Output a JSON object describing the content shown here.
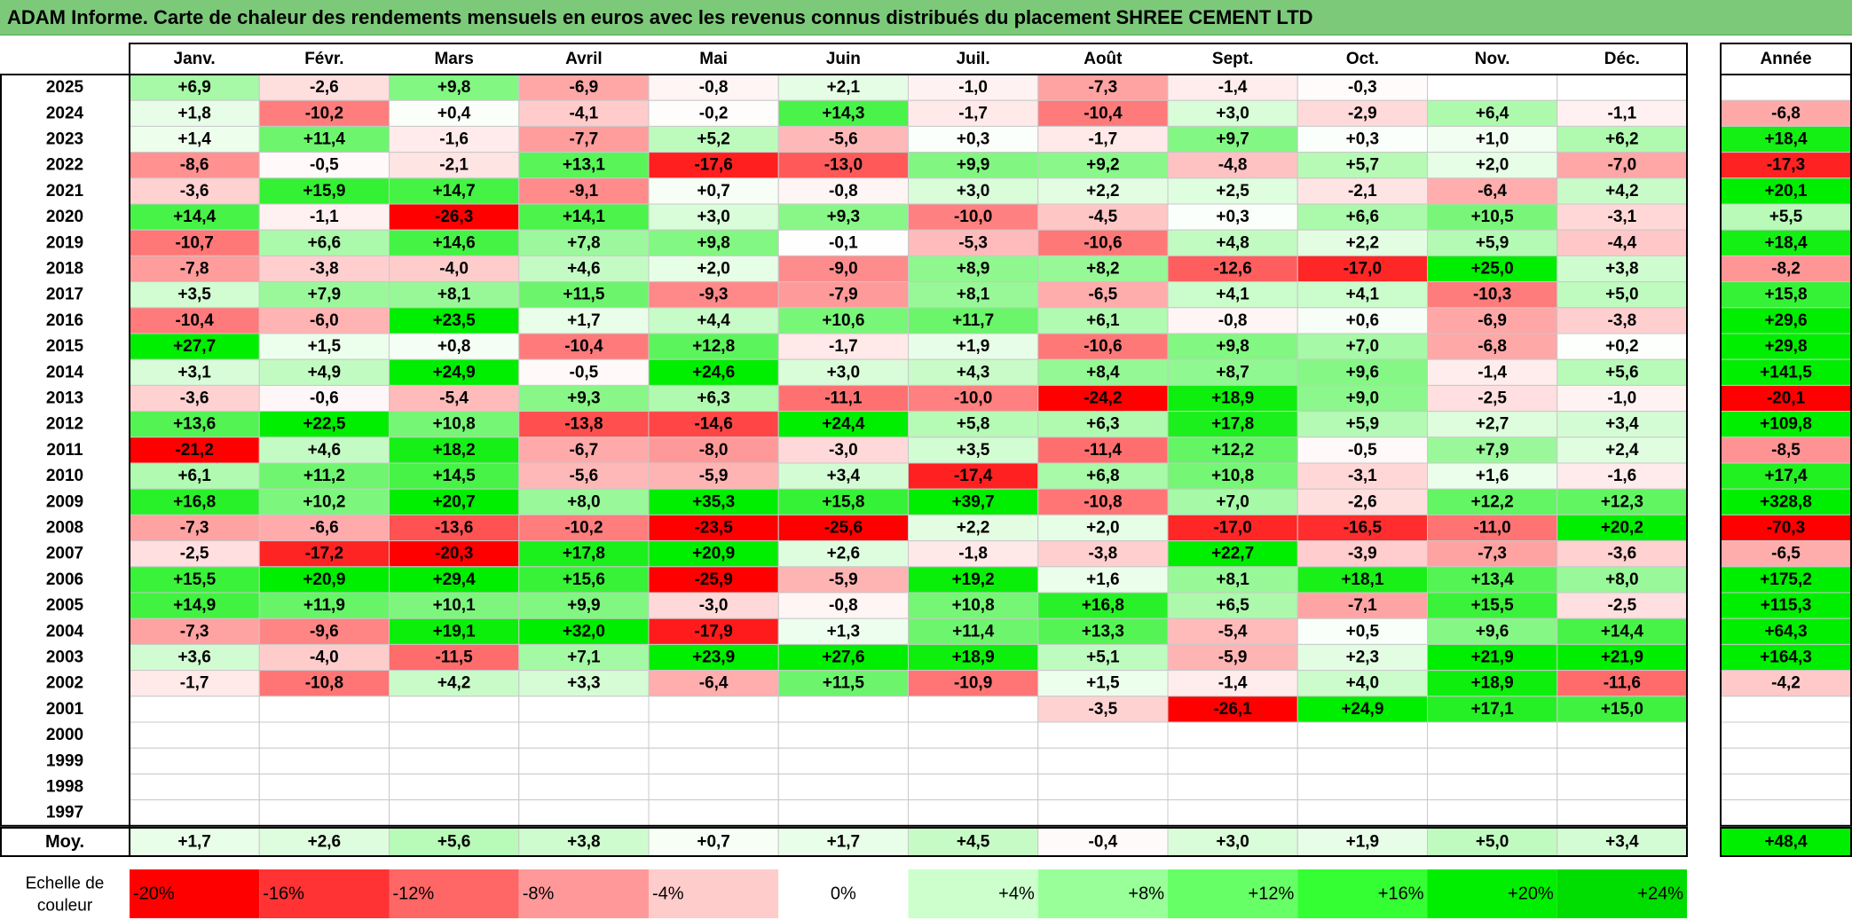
{
  "title": "ADAM Informe. Carte de chaleur des rendements mensuels en euros avec les revenus connus distribués du placement SHREE CEMENT LTD",
  "chart_data": {
    "type": "heatmap",
    "months": [
      "Janv.",
      "Févr.",
      "Mars",
      "Avril",
      "Mai",
      "Juin",
      "Juil.",
      "Août",
      "Sept.",
      "Oct.",
      "Nov.",
      "Déc."
    ],
    "year_header": "Année",
    "rows": [
      {
        "year": "2025",
        "values": [
          "+6,9",
          "-2,6",
          "+9,8",
          "-6,9",
          "-0,8",
          "+2,1",
          "-1,0",
          "-7,3",
          "-1,4",
          "-0,3",
          "",
          ""
        ],
        "annual": ""
      },
      {
        "year": "2024",
        "values": [
          "+1,8",
          "-10,2",
          "+0,4",
          "-4,1",
          "-0,2",
          "+14,3",
          "-1,7",
          "-10,4",
          "+3,0",
          "-2,9",
          "+6,4",
          "-1,1"
        ],
        "annual": "-6,8"
      },
      {
        "year": "2023",
        "values": [
          "+1,4",
          "+11,4",
          "-1,6",
          "-7,7",
          "+5,2",
          "-5,6",
          "+0,3",
          "-1,7",
          "+9,7",
          "+0,3",
          "+1,0",
          "+6,2"
        ],
        "annual": "+18,4"
      },
      {
        "year": "2022",
        "values": [
          "-8,6",
          "-0,5",
          "-2,1",
          "+13,1",
          "-17,6",
          "-13,0",
          "+9,9",
          "+9,2",
          "-4,8",
          "+5,7",
          "+2,0",
          "-7,0"
        ],
        "annual": "-17,3"
      },
      {
        "year": "2021",
        "values": [
          "-3,6",
          "+15,9",
          "+14,7",
          "-9,1",
          "+0,7",
          "-0,8",
          "+3,0",
          "+2,2",
          "+2,5",
          "-2,1",
          "-6,4",
          "+4,2"
        ],
        "annual": "+20,1"
      },
      {
        "year": "2020",
        "values": [
          "+14,4",
          "-1,1",
          "-26,3",
          "+14,1",
          "+3,0",
          "+9,3",
          "-10,0",
          "-4,5",
          "+0,3",
          "+6,6",
          "+10,5",
          "-3,1"
        ],
        "annual": "+5,5"
      },
      {
        "year": "2019",
        "values": [
          "-10,7",
          "+6,6",
          "+14,6",
          "+7,8",
          "+9,8",
          "-0,1",
          "-5,3",
          "-10,6",
          "+4,8",
          "+2,2",
          "+5,9",
          "-4,4"
        ],
        "annual": "+18,4"
      },
      {
        "year": "2018",
        "values": [
          "-7,8",
          "-3,8",
          "-4,0",
          "+4,6",
          "+2,0",
          "-9,0",
          "+8,9",
          "+8,2",
          "-12,6",
          "-17,0",
          "+25,0",
          "+3,8"
        ],
        "annual": "-8,2"
      },
      {
        "year": "2017",
        "values": [
          "+3,5",
          "+7,9",
          "+8,1",
          "+11,5",
          "-9,3",
          "-7,9",
          "+8,1",
          "-6,5",
          "+4,1",
          "+4,1",
          "-10,3",
          "+5,0"
        ],
        "annual": "+15,8"
      },
      {
        "year": "2016",
        "values": [
          "-10,4",
          "-6,0",
          "+23,5",
          "+1,7",
          "+4,4",
          "+10,6",
          "+11,7",
          "+6,1",
          "-0,8",
          "+0,6",
          "-6,9",
          "-3,8"
        ],
        "annual": "+29,6"
      },
      {
        "year": "2015",
        "values": [
          "+27,7",
          "+1,5",
          "+0,8",
          "-10,4",
          "+12,8",
          "-1,7",
          "+1,9",
          "-10,6",
          "+9,8",
          "+7,0",
          "-6,8",
          "+0,2"
        ],
        "annual": "+29,8"
      },
      {
        "year": "2014",
        "values": [
          "+3,1",
          "+4,9",
          "+24,9",
          "-0,5",
          "+24,6",
          "+3,0",
          "+4,3",
          "+8,4",
          "+8,7",
          "+9,6",
          "-1,4",
          "+5,6"
        ],
        "annual": "+141,5"
      },
      {
        "year": "2013",
        "values": [
          "-3,6",
          "-0,6",
          "-5,4",
          "+9,3",
          "+6,3",
          "-11,1",
          "-10,0",
          "-24,2",
          "+18,9",
          "+9,0",
          "-2,5",
          "-1,0"
        ],
        "annual": "-20,1"
      },
      {
        "year": "2012",
        "values": [
          "+13,6",
          "+22,5",
          "+10,8",
          "-13,8",
          "-14,6",
          "+24,4",
          "+5,8",
          "+6,3",
          "+17,8",
          "+5,9",
          "+2,7",
          "+3,4"
        ],
        "annual": "+109,8"
      },
      {
        "year": "2011",
        "values": [
          "-21,2",
          "+4,6",
          "+18,2",
          "-6,7",
          "-8,0",
          "-3,0",
          "+3,5",
          "-11,4",
          "+12,2",
          "-0,5",
          "+7,9",
          "+2,4"
        ],
        "annual": "-8,5"
      },
      {
        "year": "2010",
        "values": [
          "+6,1",
          "+11,2",
          "+14,5",
          "-5,6",
          "-5,9",
          "+3,4",
          "-17,4",
          "+6,8",
          "+10,8",
          "-3,1",
          "+1,6",
          "-1,6"
        ],
        "annual": "+17,4"
      },
      {
        "year": "2009",
        "values": [
          "+16,8",
          "+10,2",
          "+20,7",
          "+8,0",
          "+35,3",
          "+15,8",
          "+39,7",
          "-10,8",
          "+7,0",
          "-2,6",
          "+12,2",
          "+12,3"
        ],
        "annual": "+328,8"
      },
      {
        "year": "2008",
        "values": [
          "-7,3",
          "-6,6",
          "-13,6",
          "-10,2",
          "-23,5",
          "-25,6",
          "+2,2",
          "+2,0",
          "-17,0",
          "-16,5",
          "-11,0",
          "+20,2"
        ],
        "annual": "-70,3"
      },
      {
        "year": "2007",
        "values": [
          "-2,5",
          "-17,2",
          "-20,3",
          "+17,8",
          "+20,9",
          "+2,6",
          "-1,8",
          "-3,8",
          "+22,7",
          "-3,9",
          "-7,3",
          "-3,6"
        ],
        "annual": "-6,5"
      },
      {
        "year": "2006",
        "values": [
          "+15,5",
          "+20,9",
          "+29,4",
          "+15,6",
          "-25,9",
          "-5,9",
          "+19,2",
          "+1,6",
          "+8,1",
          "+18,1",
          "+13,4",
          "+8,0"
        ],
        "annual": "+175,2"
      },
      {
        "year": "2005",
        "values": [
          "+14,9",
          "+11,9",
          "+10,1",
          "+9,9",
          "-3,0",
          "-0,8",
          "+10,8",
          "+16,8",
          "+6,5",
          "-7,1",
          "+15,5",
          "-2,5"
        ],
        "annual": "+115,3"
      },
      {
        "year": "2004",
        "values": [
          "-7,3",
          "-9,6",
          "+19,1",
          "+32,0",
          "-17,9",
          "+1,3",
          "+11,4",
          "+13,3",
          "-5,4",
          "+0,5",
          "+9,6",
          "+14,4"
        ],
        "annual": "+64,3"
      },
      {
        "year": "2003",
        "values": [
          "+3,6",
          "-4,0",
          "-11,5",
          "+7,1",
          "+23,9",
          "+27,6",
          "+18,9",
          "+5,1",
          "-5,9",
          "+2,3",
          "+21,9",
          "+21,9"
        ],
        "annual": "+164,3"
      },
      {
        "year": "2002",
        "values": [
          "-1,7",
          "-10,8",
          "+4,2",
          "+3,3",
          "-6,4",
          "+11,5",
          "-10,9",
          "+1,5",
          "-1,4",
          "+4,0",
          "+18,9",
          "-11,6"
        ],
        "annual": "-4,2"
      },
      {
        "year": "2001",
        "values": [
          "",
          "",
          "",
          "",
          "",
          "",
          "",
          "-3,5",
          "-26,1",
          "+24,9",
          "+17,1",
          "+15,0"
        ],
        "annual": ""
      },
      {
        "year": "2000",
        "values": [
          "",
          "",
          "",
          "",
          "",
          "",
          "",
          "",
          "",
          "",
          "",
          ""
        ],
        "annual": ""
      },
      {
        "year": "1999",
        "values": [
          "",
          "",
          "",
          "",
          "",
          "",
          "",
          "",
          "",
          "",
          "",
          ""
        ],
        "annual": ""
      },
      {
        "year": "1998",
        "values": [
          "",
          "",
          "",
          "",
          "",
          "",
          "",
          "",
          "",
          "",
          "",
          ""
        ],
        "annual": ""
      },
      {
        "year": "1997",
        "values": [
          "",
          "",
          "",
          "",
          "",
          "",
          "",
          "",
          "",
          "",
          "",
          ""
        ],
        "annual": ""
      }
    ],
    "average": {
      "label": "Moy.",
      "values": [
        "+1,7",
        "+2,6",
        "+5,6",
        "+3,8",
        "+0,7",
        "+1,7",
        "+4,5",
        "-0,4",
        "+3,0",
        "+1,9",
        "+5,0",
        "+3,4"
      ],
      "annual": "+48,4"
    },
    "scale": {
      "label_line1": "Echelle de",
      "label_line2": "couleur",
      "steps": [
        {
          "label": "-20%",
          "value": -20,
          "color": "#ff0000"
        },
        {
          "label": "-16%",
          "value": -16,
          "color": "#ff3333"
        },
        {
          "label": "-12%",
          "value": -12,
          "color": "#ff6666"
        },
        {
          "label": "-8%",
          "value": -8,
          "color": "#ff9999"
        },
        {
          "label": "-4%",
          "value": -4,
          "color": "#ffcccc"
        },
        {
          "label": "0%",
          "value": 0,
          "color": "#ffffff"
        },
        {
          "label": "+4%",
          "value": 4,
          "color": "#ccffcc"
        },
        {
          "label": "+8%",
          "value": 8,
          "color": "#99ff99"
        },
        {
          "label": "+12%",
          "value": 12,
          "color": "#66ff66"
        },
        {
          "label": "+16%",
          "value": 16,
          "color": "#33ff33"
        },
        {
          "label": "+20%",
          "value": 20,
          "color": "#00ee00"
        },
        {
          "label": "+24%",
          "value": 24,
          "color": "#00dd00"
        }
      ]
    }
  }
}
